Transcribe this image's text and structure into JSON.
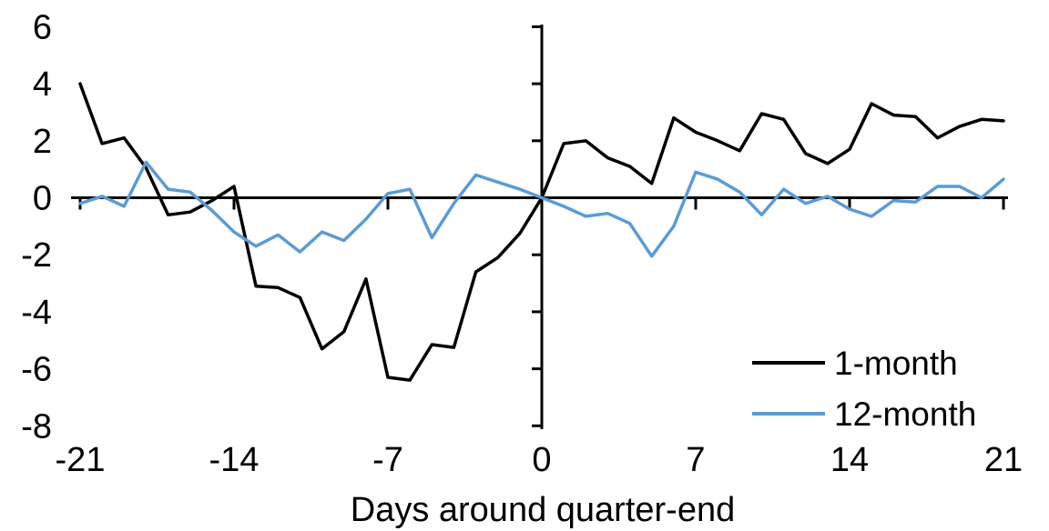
{
  "chart_data": {
    "type": "line",
    "title": "",
    "xlabel": "Days around quarter-end",
    "ylabel": "",
    "xlim": [
      -21,
      21
    ],
    "ylim": [
      -8,
      6
    ],
    "grid": false,
    "axes_cross_at": [
      0,
      0
    ],
    "legend_position": "lower right",
    "x_ticks": [
      -21,
      -14,
      -7,
      0,
      7,
      14,
      21
    ],
    "y_ticks": [
      6,
      4,
      2,
      0,
      -2,
      -4,
      -6,
      -8
    ],
    "x": [
      -21,
      -20,
      -19,
      -18,
      -17,
      -16,
      -15,
      -14,
      -13,
      -12,
      -11,
      -10,
      -9,
      -8,
      -7,
      -6,
      -5,
      -4,
      -3,
      -2,
      -1,
      0,
      1,
      2,
      3,
      4,
      5,
      6,
      7,
      8,
      9,
      10,
      11,
      12,
      13,
      14,
      15,
      16,
      17,
      18,
      19,
      20,
      21
    ],
    "series": [
      {
        "name": "1-month",
        "color": "#000000",
        "values": [
          4.0,
          1.9,
          2.1,
          1.05,
          -0.6,
          -0.5,
          -0.1,
          0.4,
          -3.1,
          -3.15,
          -3.5,
          -5.3,
          -4.7,
          -2.85,
          -6.3,
          -6.4,
          -5.15,
          -5.25,
          -2.6,
          -2.1,
          -1.25,
          0.0,
          1.9,
          2.0,
          1.4,
          1.1,
          0.5,
          2.8,
          2.3,
          2.0,
          1.65,
          2.95,
          2.75,
          1.55,
          1.2,
          1.7,
          3.3,
          2.9,
          2.85,
          2.1,
          2.5,
          2.75,
          2.7
        ]
      },
      {
        "name": "12-month",
        "color": "#5B9BD5",
        "values": [
          -0.2,
          0.05,
          -0.3,
          1.25,
          0.3,
          0.2,
          -0.45,
          -1.2,
          -1.7,
          -1.3,
          -1.9,
          -1.2,
          -1.5,
          -0.75,
          0.15,
          0.3,
          -1.4,
          -0.2,
          0.8,
          0.55,
          0.3,
          0.0,
          -0.3,
          -0.65,
          -0.55,
          -0.9,
          -2.05,
          -1.0,
          0.9,
          0.65,
          0.2,
          -0.6,
          0.3,
          -0.2,
          0.05,
          -0.4,
          -0.65,
          -0.1,
          -0.15,
          0.4,
          0.4,
          0.0,
          0.65
        ]
      }
    ]
  }
}
